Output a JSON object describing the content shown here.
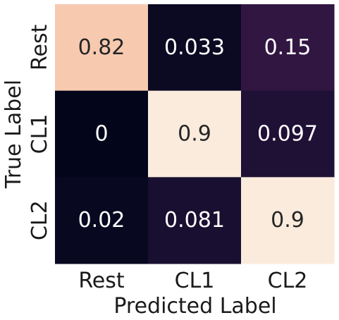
{
  "chart_data": {
    "type": "heatmap",
    "xlabel": "Predicted Label",
    "ylabel": "True Label",
    "x_categories": [
      "Rest",
      "CL1",
      "CL2"
    ],
    "y_categories": [
      "Rest",
      "CL1",
      "CL2"
    ],
    "values": [
      [
        0.82,
        0.033,
        0.15
      ],
      [
        0,
        0.9,
        0.097
      ],
      [
        0.02,
        0.081,
        0.9
      ]
    ],
    "value_labels": [
      [
        "0.82",
        "0.033",
        "0.15"
      ],
      [
        "0",
        "0.9",
        "0.097"
      ],
      [
        "0.02",
        "0.081",
        "0.9"
      ]
    ],
    "vmin": 0,
    "vmax": 0.9,
    "colormap": "rocket",
    "colorbar": false,
    "colors": {
      "light_text": "#ffffff",
      "dark_text": "#262626"
    }
  }
}
